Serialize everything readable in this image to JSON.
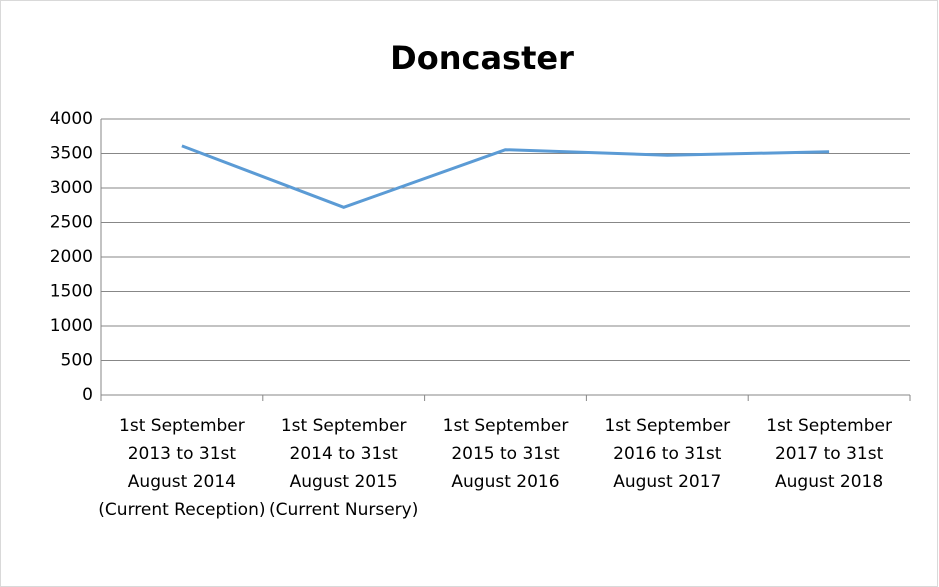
{
  "chart_data": {
    "type": "line",
    "title": "Doncaster",
    "categories": [
      "1st September 2013 to 31st August 2014 (Current Reception)",
      "1st September 2014 to 31st August 2015 (Current Nursery)",
      "1st September 2015 to 31st August 2016",
      "1st September 2016 to 31st August 2017",
      "1st September 2017 to 31st August 2018"
    ],
    "values": [
      3610,
      2720,
      3555,
      3475,
      3525
    ],
    "color": "#5b9bd5",
    "ylim": [
      0,
      4000
    ],
    "yticks": [
      0,
      500,
      1000,
      1500,
      2000,
      2500,
      3000,
      3500,
      4000
    ],
    "grid": true
  }
}
